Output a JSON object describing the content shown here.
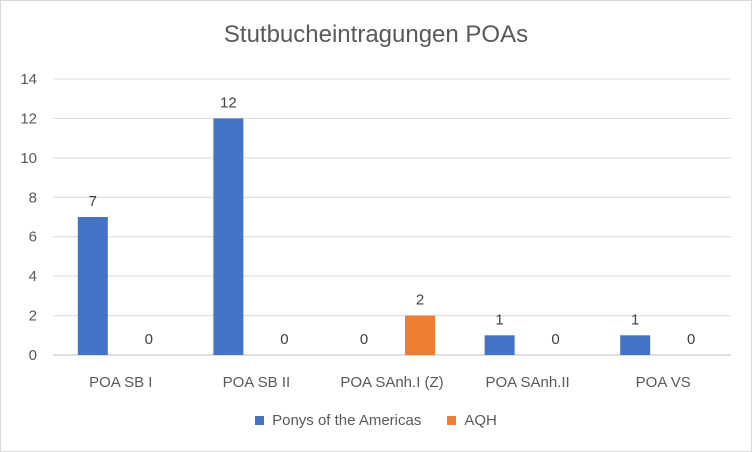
{
  "chart_data": {
    "type": "bar",
    "title": "Stutbucheintragungen POAs",
    "categories": [
      "POA SB I",
      "POA SB II",
      "POA SAnh.I (Z)",
      "POA SAnh.II",
      "POA VS"
    ],
    "series": [
      {
        "name": "Ponys of the Americas",
        "color": "#4472c4",
        "values": [
          7,
          12,
          0,
          1,
          1
        ]
      },
      {
        "name": "AQH",
        "color": "#ed7d31",
        "values": [
          0,
          0,
          2,
          0,
          0
        ]
      }
    ],
    "ylim": [
      0,
      14
    ],
    "yticks": [
      0,
      2,
      4,
      6,
      8,
      10,
      12,
      14
    ],
    "grid": true,
    "legend": "bottom",
    "data_labels": true
  }
}
